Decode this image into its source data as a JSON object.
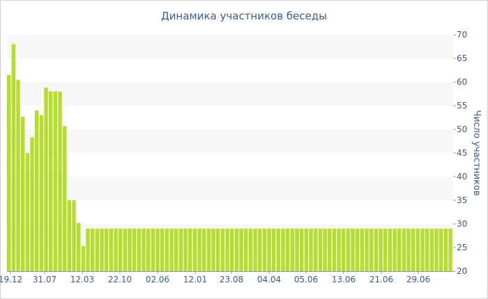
{
  "chart_data": {
    "type": "bar",
    "title": "Динамика участников беседы",
    "ylabel": "Число участников",
    "xlabel": "",
    "ylim": [
      20,
      70
    ],
    "yticks": [
      20,
      25,
      30,
      35,
      40,
      45,
      50,
      55,
      60,
      65,
      70
    ],
    "y_axis_position": "right",
    "grid": "alternating horizontal bands",
    "bar_color": "#b6dc2f",
    "band_color": "#f7f7f7",
    "text_color": "#3e5a86",
    "x_tick_labels": [
      "19.12",
      "31.07",
      "12.03",
      "22.10",
      "02.06",
      "12.01",
      "23.08",
      "04.04",
      "05.06",
      "13.06",
      "21.06",
      "29.06"
    ],
    "values": [
      61.5,
      68,
      60.5,
      52.7,
      45,
      48.3,
      54,
      53,
      58.8,
      58,
      58,
      58,
      50.7,
      35,
      35,
      30.2,
      25.3,
      29,
      29,
      29,
      29,
      29,
      29,
      29,
      29,
      29,
      29,
      29,
      29,
      29,
      29,
      29,
      29,
      29,
      29,
      29,
      29,
      29,
      29,
      29,
      29,
      29,
      29,
      29,
      29,
      29,
      29,
      29,
      29,
      29,
      29,
      29,
      29,
      29,
      29,
      29,
      29,
      29,
      29,
      29,
      29,
      29,
      29,
      29,
      29,
      29,
      29,
      29,
      29,
      29,
      29,
      29,
      29,
      29,
      29,
      29,
      29,
      29,
      29,
      29,
      29,
      29,
      29,
      29,
      29,
      29,
      29,
      29,
      29,
      29,
      29,
      29,
      29,
      29,
      29,
      29
    ]
  }
}
